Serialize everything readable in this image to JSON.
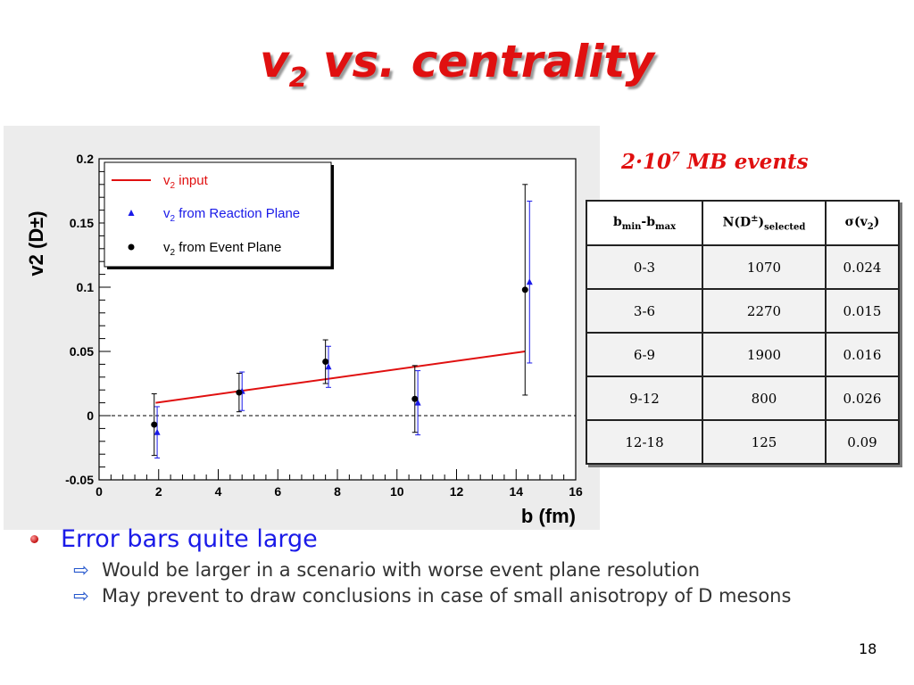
{
  "slide": {
    "title_v": "v",
    "title_sub": "2",
    "title_rest": " vs. centrality",
    "page_number": "18"
  },
  "events": {
    "base": "2·10",
    "exp": "7",
    "rest": " MB events"
  },
  "table": {
    "headers": [
      {
        "main": "b",
        "sub1": "min",
        "mid": "-b",
        "sub2": "max"
      },
      {
        "main": "N(D",
        "sup": "±",
        "close": ")",
        "sub": "selected"
      },
      {
        "main": "σ(v",
        "sub": "2",
        "close": ")"
      }
    ],
    "rows": [
      [
        "0-3",
        "1070",
        "0.024"
      ],
      [
        "3-6",
        "2270",
        "0.015"
      ],
      [
        "6-9",
        "1900",
        "0.016"
      ],
      [
        "9-12",
        "800",
        "0.026"
      ],
      [
        "12-18",
        "125",
        "0.09"
      ]
    ]
  },
  "bullets": {
    "main": "Error bars quite large",
    "subs": [
      "Would be larger in a scenario with worse event plane resolution",
      "May prevent to draw conclusions in case of small anisotropy of D mesons"
    ]
  },
  "colors": {
    "title_red": "#e01010",
    "input_line": "#e01010",
    "reaction_plane": "#1a1ae8",
    "event_plane": "#000000",
    "bullet_blue": "#1a1ae8"
  },
  "chart_data": {
    "type": "scatter",
    "xlabel": "b (fm)",
    "ylabel": "v2 (D±)",
    "xlim": [
      0,
      16
    ],
    "ylim": [
      -0.05,
      0.2
    ],
    "x_ticks": [
      0,
      2,
      4,
      6,
      8,
      10,
      12,
      14,
      16
    ],
    "y_ticks": [
      -0.05,
      0,
      0.05,
      0.1,
      0.15,
      0.2
    ],
    "x_tick_labels": [
      "0",
      "2",
      "4",
      "6",
      "8",
      "10",
      "12",
      "14",
      "16"
    ],
    "y_tick_labels": [
      "-0.05",
      "0",
      "0.05",
      "0.1",
      "0.15",
      "0.2"
    ],
    "zero_line": true,
    "legend_position": "top-left",
    "input_line": {
      "name": "v2 input",
      "x": [
        1.9,
        14.3
      ],
      "y": [
        0.01,
        0.05
      ]
    },
    "series": [
      {
        "name": "v2 from Reaction Plane",
        "marker": "triangle",
        "x": [
          1.95,
          4.8,
          7.7,
          10.7,
          14.45
        ],
        "y": [
          -0.013,
          0.019,
          0.038,
          0.01,
          0.104
        ],
        "err": [
          0.02,
          0.015,
          0.016,
          0.025,
          0.063
        ]
      },
      {
        "name": "v2 from Event Plane",
        "marker": "circle",
        "x": [
          1.85,
          4.7,
          7.6,
          10.6,
          14.3
        ],
        "y": [
          -0.007,
          0.018,
          0.042,
          0.013,
          0.098
        ],
        "err": [
          0.024,
          0.015,
          0.017,
          0.026,
          0.082
        ]
      }
    ],
    "legend": [
      {
        "label": "v",
        "sub": "2",
        "rest": " input"
      },
      {
        "label": "v",
        "sub": "2",
        "rest": " from Reaction Plane"
      },
      {
        "label": "v",
        "sub": "2",
        "rest": " from Event Plane"
      }
    ]
  }
}
